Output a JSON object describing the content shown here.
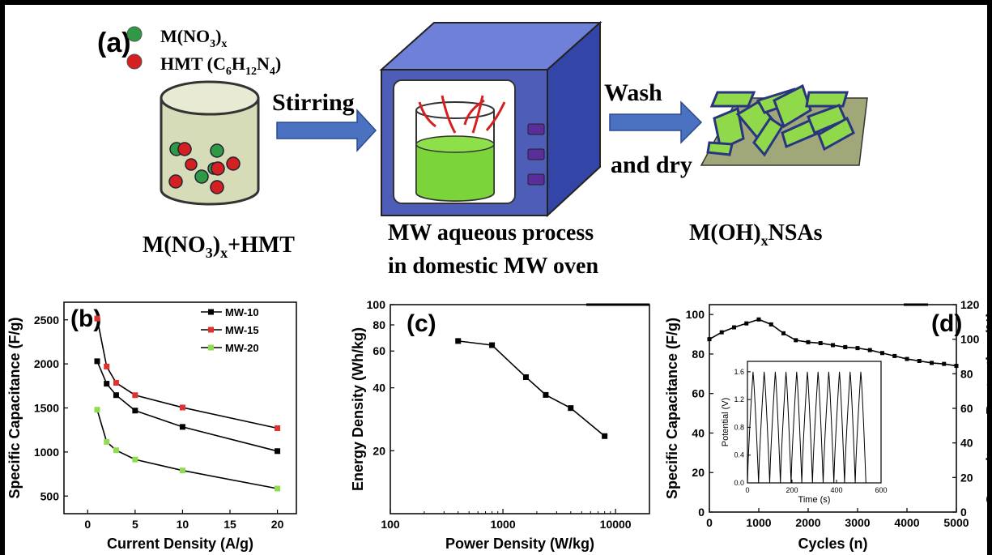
{
  "schematic": {
    "panel_label": "(a)",
    "legend": [
      {
        "text_main": "M(NO",
        "sub": "3",
        "text_after": ")",
        "sub2": "x",
        "color": "#2e9a45"
      },
      {
        "text_main": "HMT (C",
        "sub": "6",
        "text_mid": "H",
        "sub2": "12",
        "text_mid2": "N",
        "sub3": "4",
        "text_after": ")",
        "color": "#d42020"
      }
    ],
    "steps": {
      "stirring": "Stirring",
      "wash": "Wash",
      "and_dry": "and dry"
    },
    "captions": {
      "precursor_main": "M(NO",
      "precursor_sub": "3",
      "precursor_close": ")",
      "precursor_sub2": "x",
      "precursor_tail": "+HMT",
      "process_line1": "MW aqueous process",
      "process_line2": "in domestic MW oven",
      "product_main": "M(OH)",
      "product_sub": "x",
      "product_tail": "NSAs"
    },
    "colors": {
      "arrow": "#4a72c0",
      "oven": "#4d5db8",
      "green": "#7ad43a",
      "red": "#d42020"
    }
  },
  "chart_data": [
    {
      "panel_label": "(b)",
      "type": "line",
      "xlabel": "Current Density (A/g)",
      "ylabel": "Specific Capacitance (F/g)",
      "xlim": [
        -2.5,
        22
      ],
      "ylim": [
        300,
        2700
      ],
      "xticks": [
        0,
        5,
        10,
        15,
        20
      ],
      "yticks": [
        500,
        1000,
        1500,
        2000,
        2500
      ],
      "legend_position": "top-right",
      "series": [
        {
          "name": "MW-10",
          "color": "#000000",
          "x": [
            1,
            2,
            3,
            5,
            10,
            20
          ],
          "y": [
            2030,
            1775,
            1645,
            1470,
            1285,
            1010
          ]
        },
        {
          "name": "MW-15",
          "color": "#e03030",
          "x": [
            1,
            2,
            3,
            5,
            10,
            20
          ],
          "y": [
            2515,
            1970,
            1785,
            1645,
            1505,
            1270
          ]
        },
        {
          "name": "MW-20",
          "color": "#8fdc50",
          "x": [
            1,
            2,
            3,
            5,
            10,
            20
          ],
          "y": [
            1480,
            1115,
            1020,
            915,
            790,
            585
          ]
        }
      ]
    },
    {
      "panel_label": "(c)",
      "type": "line",
      "xscale": "log",
      "yscale": "log",
      "xlabel": "Power Density (W/kg)",
      "ylabel": "Energy Density (Wh/kg)",
      "xlim": [
        100,
        20000
      ],
      "ylim": [
        10,
        100
      ],
      "xticks": [
        100,
        1000,
        10000
      ],
      "xtick_labels": [
        "100",
        "1000",
        "10000"
      ],
      "yticks": [
        20,
        40,
        60,
        80,
        100
      ],
      "series": [
        {
          "color": "#000000",
          "x": [
            400,
            800,
            1600,
            2400,
            4000,
            8000
          ],
          "y": [
            67,
            64,
            45,
            37,
            32,
            23.5
          ]
        }
      ]
    },
    {
      "panel_label": "(d)",
      "type": "line",
      "xlabel": "Cycles (n)",
      "ylabel": "Specific Capacitance (F/g)",
      "ylabel_right": "Capacitance Rentention (%)",
      "xlim": [
        0,
        5000
      ],
      "ylim": [
        0,
        105
      ],
      "ylim_right": [
        0,
        120
      ],
      "xticks": [
        0,
        1000,
        2000,
        3000,
        4000,
        5000
      ],
      "yticks": [
        0,
        20,
        40,
        60,
        80,
        100
      ],
      "yticks_right": [
        0,
        20,
        40,
        60,
        80,
        100,
        120
      ],
      "series": [
        {
          "color": "#000000",
          "x": [
            0,
            250,
            500,
            750,
            1000,
            1250,
            1500,
            1750,
            2000,
            2250,
            2500,
            2750,
            3000,
            3250,
            3500,
            3750,
            4000,
            4250,
            4500,
            4750,
            5000
          ],
          "y": [
            87.5,
            91,
            93.5,
            95.5,
            97.5,
            95,
            90.5,
            87,
            86,
            85.5,
            84.5,
            83.5,
            83,
            82,
            80.5,
            79,
            77.5,
            76.5,
            75.5,
            75,
            74
          ]
        }
      ],
      "inset": {
        "xlabel": "Time (s)",
        "ylabel": "Potential (V)",
        "xlim": [
          0,
          600
        ],
        "ylim": [
          0,
          1.75
        ],
        "xticks": [
          0,
          200,
          400,
          600
        ],
        "yticks": [
          0.0,
          0.4,
          0.8,
          1.2,
          1.6
        ],
        "ytick_labels": [
          "0.0",
          "0.4",
          "0.8",
          "1.2",
          "1.6"
        ],
        "cycles": [
          [
            0,
            25,
            50
          ],
          [
            50,
            75,
            100
          ],
          [
            100,
            125,
            148
          ],
          [
            148,
            173,
            196
          ],
          [
            196,
            221,
            244
          ],
          [
            244,
            269,
            292
          ],
          [
            292,
            317,
            340
          ],
          [
            340,
            365,
            388
          ],
          [
            388,
            413,
            436
          ],
          [
            436,
            461,
            484
          ],
          [
            484,
            509,
            532
          ]
        ]
      }
    }
  ]
}
